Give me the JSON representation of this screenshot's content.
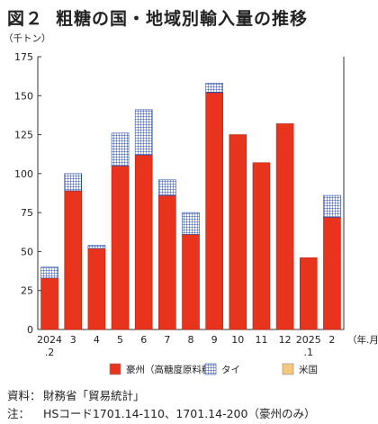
{
  "title": {
    "fig": "図２",
    "text": "粗糖の国・地域別輸入量の推移"
  },
  "chart_data": {
    "type": "bar",
    "stacked": true,
    "ylabel": "（千トン）",
    "xlabel": "（年.月）",
    "ylim": [
      0,
      175
    ],
    "yticks": [
      0,
      25,
      50,
      75,
      100,
      125,
      150,
      175
    ],
    "grid": false,
    "legend_position": "bottom",
    "categories": [
      [
        "2024",
        ".2"
      ],
      [
        "3"
      ],
      [
        "4"
      ],
      [
        "5"
      ],
      [
        "6"
      ],
      [
        "7"
      ],
      [
        "8"
      ],
      [
        "9"
      ],
      [
        "10"
      ],
      [
        "11"
      ],
      [
        "12"
      ],
      [
        "2025",
        ".1"
      ],
      [
        "2"
      ]
    ],
    "series": [
      {
        "name": "豪州（高糖度原料糖）",
        "color": "#e8341c",
        "pattern": "solid",
        "values": [
          33,
          89,
          52,
          105,
          112,
          86,
          61,
          152,
          125,
          107,
          132,
          46,
          72
        ]
      },
      {
        "name": "タイ",
        "color": "#2b4ea8",
        "pattern": "grid",
        "values": [
          7,
          11,
          2,
          21,
          29,
          10,
          14,
          6,
          0,
          0,
          0,
          0,
          14
        ]
      },
      {
        "name": "米国",
        "color": "#f5c77a",
        "pattern": "solid",
        "values": [
          0,
          0,
          0,
          0,
          0,
          0,
          0,
          0,
          0,
          0,
          0,
          0,
          0
        ]
      }
    ]
  },
  "notes": [
    {
      "key": "資料：",
      "text": "財務省「貿易統計」"
    },
    {
      "key": "注：",
      "text": "HSコード1701.14-110、1701.14-200（豪州のみ）"
    }
  ]
}
